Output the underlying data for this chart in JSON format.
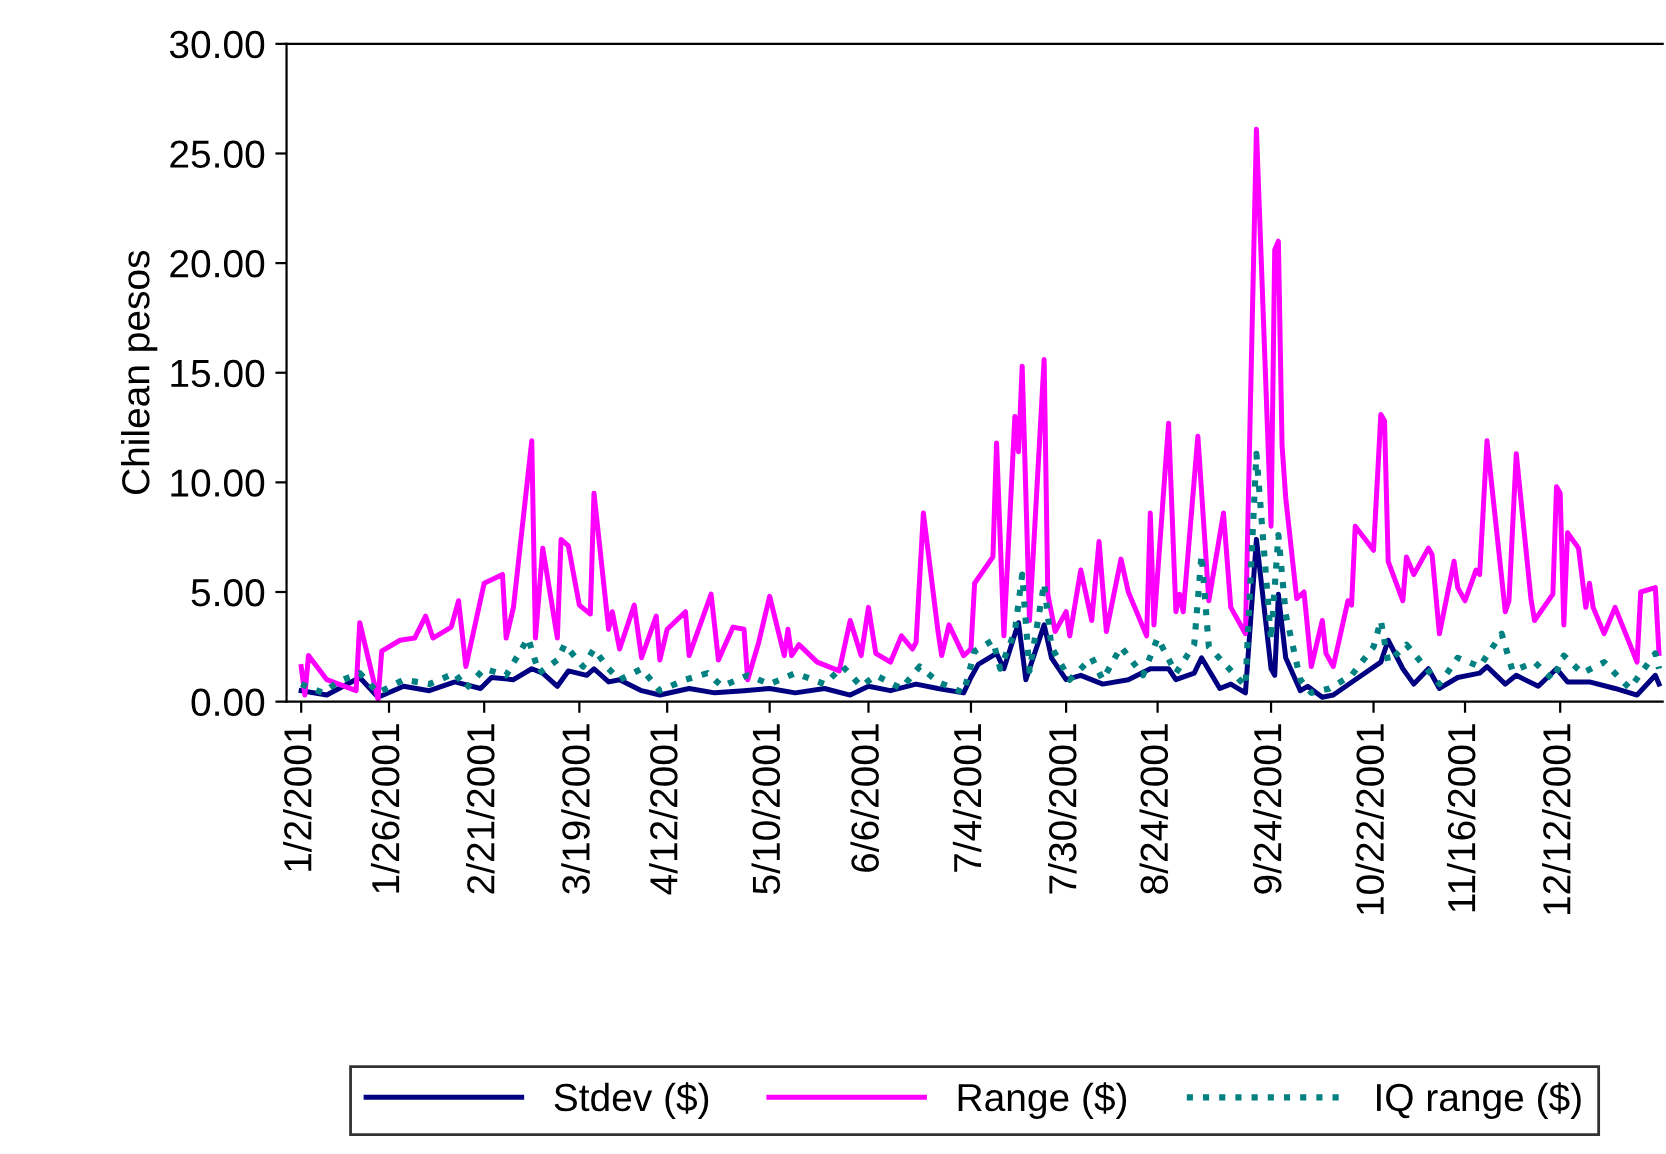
{
  "chart_data": {
    "type": "line",
    "ylabel": "Chilean pesos",
    "xlim": [
      "2000-12-29",
      "2002-01-09"
    ],
    "xticks": [
      {
        "value": "2001-01-02",
        "label": "1/2/2001"
      },
      {
        "value": "2001-01-26",
        "label": "1/26/2001"
      },
      {
        "value": "2001-02-21",
        "label": "2/21/2001"
      },
      {
        "value": "2001-03-19",
        "label": "3/19/2001"
      },
      {
        "value": "2001-04-12",
        "label": "4/12/2001"
      },
      {
        "value": "2001-05-10",
        "label": "5/10/2001"
      },
      {
        "value": "2001-06-06",
        "label": "6/6/2001"
      },
      {
        "value": "2001-07-04",
        "label": "7/4/2001"
      },
      {
        "value": "2001-07-30",
        "label": "7/30/2001"
      },
      {
        "value": "2001-08-24",
        "label": "8/24/2001"
      },
      {
        "value": "2001-09-24",
        "label": "9/24/2001"
      },
      {
        "value": "2001-10-22",
        "label": "10/22/2001"
      },
      {
        "value": "2001-11-16",
        "label": "11/16/2001"
      },
      {
        "value": "2001-12-12",
        "label": "12/12/2001"
      }
    ],
    "ylim": [
      0,
      30
    ],
    "yticks": [
      {
        "value": 0,
        "label": "0.00"
      },
      {
        "value": 5,
        "label": "5.00"
      },
      {
        "value": 10,
        "label": "10.00"
      },
      {
        "value": 15,
        "label": "15.00"
      },
      {
        "value": 20,
        "label": "20.00"
      },
      {
        "value": 25,
        "label": "25.00"
      },
      {
        "value": 30,
        "label": "30.00"
      }
    ],
    "grid": false,
    "legend": "bottom",
    "marker": "none",
    "series": [
      {
        "name": "Stdev ($)",
        "color": "#000080",
        "line_style": "solid",
        "x": [
          "2001-01-02",
          "2001-01-09",
          "2001-01-18",
          "2001-01-23",
          "2001-01-30",
          "2001-02-06",
          "2001-02-13",
          "2001-02-20",
          "2001-02-23",
          "2001-03-01",
          "2001-03-06",
          "2001-03-09",
          "2001-03-13",
          "2001-03-16",
          "2001-03-21",
          "2001-03-23",
          "2001-03-27",
          "2001-03-30",
          "2001-04-05",
          "2001-04-10",
          "2001-04-18",
          "2001-04-25",
          "2001-05-03",
          "2001-05-10",
          "2001-05-17",
          "2001-05-25",
          "2001-06-01",
          "2001-06-06",
          "2001-06-12",
          "2001-06-19",
          "2001-06-25",
          "2001-07-02",
          "2001-07-04",
          "2001-07-06",
          "2001-07-11",
          "2001-07-13",
          "2001-07-17",
          "2001-07-19",
          "2001-07-24",
          "2001-07-26",
          "2001-07-30",
          "2001-08-03",
          "2001-08-09",
          "2001-08-16",
          "2001-08-22",
          "2001-08-27",
          "2001-08-29",
          "2001-09-03",
          "2001-09-05",
          "2001-09-10",
          "2001-09-13",
          "2001-09-17",
          "2001-09-20",
          "2001-09-24",
          "2001-09-25",
          "2001-09-26",
          "2001-09-28",
          "2001-10-02",
          "2001-10-04",
          "2001-10-08",
          "2001-10-11",
          "2001-10-17",
          "2001-10-24",
          "2001-10-26",
          "2001-10-30",
          "2001-11-02",
          "2001-11-06",
          "2001-11-09",
          "2001-11-14",
          "2001-11-20",
          "2001-11-22",
          "2001-11-27",
          "2001-11-30",
          "2001-12-06",
          "2001-12-11",
          "2001-12-14",
          "2001-12-20",
          "2001-12-27",
          "2002-01-02",
          "2002-01-07",
          "2002-01-08"
        ],
        "values": [
          0.5,
          0.3,
          1.1,
          0.2,
          0.7,
          0.5,
          0.9,
          0.6,
          1.1,
          1.0,
          1.5,
          1.3,
          0.7,
          1.4,
          1.2,
          1.5,
          0.9,
          1.0,
          0.5,
          0.3,
          0.6,
          0.4,
          0.5,
          0.6,
          0.4,
          0.6,
          0.3,
          0.7,
          0.5,
          0.8,
          0.6,
          0.4,
          1.1,
          1.7,
          2.2,
          1.5,
          3.6,
          1.0,
          3.5,
          2.0,
          1.0,
          1.2,
          0.8,
          1.0,
          1.5,
          1.5,
          1.0,
          1.3,
          2.0,
          0.6,
          0.8,
          0.4,
          7.4,
          1.5,
          1.2,
          4.9,
          2.0,
          0.5,
          0.7,
          0.2,
          0.3,
          1.0,
          1.8,
          2.8,
          1.5,
          0.8,
          1.5,
          0.6,
          1.1,
          1.3,
          1.6,
          0.8,
          1.2,
          0.7,
          1.5,
          0.9,
          0.9,
          0.6,
          0.3,
          1.2,
          0.8
        ]
      },
      {
        "name": "Range ($)",
        "color": "#ff00ff",
        "line_style": "solid",
        "x": [
          "2001-01-02",
          "2001-01-03",
          "2001-01-04",
          "2001-01-09",
          "2001-01-17",
          "2001-01-18",
          "2001-01-23",
          "2001-01-24",
          "2001-01-29",
          "2001-02-02",
          "2001-02-05",
          "2001-02-07",
          "2001-02-12",
          "2001-02-14",
          "2001-02-16",
          "2001-02-21",
          "2001-02-26",
          "2001-02-27",
          "2001-03-01",
          "2001-03-06",
          "2001-03-07",
          "2001-03-09",
          "2001-03-13",
          "2001-03-14",
          "2001-03-16",
          "2001-03-19",
          "2001-03-22",
          "2001-03-23",
          "2001-03-27",
          "2001-03-28",
          "2001-03-30",
          "2001-04-03",
          "2001-04-05",
          "2001-04-09",
          "2001-04-10",
          "2001-04-12",
          "2001-04-17",
          "2001-04-18",
          "2001-04-24",
          "2001-04-26",
          "2001-04-30",
          "2001-05-03",
          "2001-05-04",
          "2001-05-07",
          "2001-05-10",
          "2001-05-14",
          "2001-05-15",
          "2001-05-16",
          "2001-05-18",
          "2001-05-23",
          "2001-05-29",
          "2001-06-01",
          "2001-06-04",
          "2001-06-06",
          "2001-06-08",
          "2001-06-12",
          "2001-06-15",
          "2001-06-18",
          "2001-06-19",
          "2001-06-21",
          "2001-06-25",
          "2001-06-26",
          "2001-06-28",
          "2001-07-02",
          "2001-07-04",
          "2001-07-05",
          "2001-07-10",
          "2001-07-11",
          "2001-07-13",
          "2001-07-16",
          "2001-07-17",
          "2001-07-18",
          "2001-07-20",
          "2001-07-24",
          "2001-07-25",
          "2001-07-27",
          "2001-07-30",
          "2001-07-31",
          "2001-08-03",
          "2001-08-06",
          "2001-08-08",
          "2001-08-09",
          "2001-08-10",
          "2001-08-14",
          "2001-08-16",
          "2001-08-21",
          "2001-08-22",
          "2001-08-23",
          "2001-08-27",
          "2001-08-29",
          "2001-08-30",
          "2001-08-31",
          "2001-09-04",
          "2001-09-07",
          "2001-09-11",
          "2001-09-13",
          "2001-09-17",
          "2001-09-20",
          "2001-09-24",
          "2001-09-25",
          "2001-09-26",
          "2001-09-27",
          "2001-09-28",
          "2001-10-01",
          "2001-10-03",
          "2001-10-05",
          "2001-10-08",
          "2001-10-09",
          "2001-10-11",
          "2001-10-15",
          "2001-10-16",
          "2001-10-17",
          "2001-10-22",
          "2001-10-24",
          "2001-10-25",
          "2001-10-26",
          "2001-10-30",
          "2001-10-31",
          "2001-11-02",
          "2001-11-06",
          "2001-11-07",
          "2001-11-09",
          "2001-11-13",
          "2001-11-14",
          "2001-11-16",
          "2001-11-19",
          "2001-11-20",
          "2001-11-22",
          "2001-11-27",
          "2001-11-28",
          "2001-11-30",
          "2001-12-04",
          "2001-12-05",
          "2001-12-10",
          "2001-12-11",
          "2001-12-12",
          "2001-12-13",
          "2001-12-14",
          "2001-12-17",
          "2001-12-19",
          "2001-12-20",
          "2001-12-21",
          "2001-12-24",
          "2001-12-27",
          "2002-01-02",
          "2002-01-03",
          "2002-01-07",
          "2002-01-08"
        ],
        "values": [
          1.6,
          0.3,
          2.1,
          1.0,
          0.5,
          3.6,
          0.1,
          2.3,
          2.8,
          2.9,
          3.9,
          2.9,
          3.4,
          4.6,
          1.6,
          5.4,
          5.8,
          2.9,
          4.3,
          11.9,
          2.9,
          7.0,
          2.9,
          7.4,
          7.1,
          4.4,
          4.0,
          9.5,
          3.3,
          4.1,
          2.4,
          4.4,
          2.0,
          3.9,
          1.9,
          3.3,
          4.1,
          2.1,
          4.9,
          1.9,
          3.4,
          3.3,
          1.0,
          2.7,
          4.8,
          2.1,
          3.3,
          2.1,
          2.6,
          1.8,
          1.4,
          3.7,
          2.1,
          4.3,
          2.2,
          1.8,
          3.0,
          2.4,
          2.7,
          8.6,
          3.2,
          2.1,
          3.5,
          2.1,
          2.4,
          5.4,
          6.6,
          11.8,
          3.0,
          13.0,
          11.4,
          15.3,
          3.7,
          15.6,
          4.9,
          3.2,
          4.1,
          3.0,
          6.0,
          3.7,
          7.3,
          5.2,
          3.2,
          6.5,
          5.0,
          3.0,
          8.6,
          3.5,
          12.7,
          4.1,
          4.9,
          4.1,
          12.1,
          4.6,
          8.6,
          4.3,
          3.1,
          26.1,
          8.0,
          20.6,
          21.0,
          11.7,
          9.3,
          4.7,
          5.0,
          1.6,
          3.7,
          2.2,
          1.6,
          4.6,
          4.4,
          8.0,
          6.9,
          13.1,
          12.8,
          6.4,
          4.6,
          6.6,
          5.8,
          7.0,
          6.7,
          3.1,
          6.4,
          5.2,
          4.6,
          6.0,
          5.8,
          11.9,
          4.1,
          4.6,
          11.3,
          4.7,
          3.7,
          4.9,
          9.8,
          9.5,
          3.5,
          7.7,
          7.0,
          4.3,
          5.4,
          4.3,
          3.1,
          4.3,
          1.8,
          5.0,
          5.2,
          2.2
        ]
      },
      {
        "name": "IQ range ($)",
        "color": "#008080",
        "line_style": "dotted",
        "x": [
          "2001-01-02",
          "2001-01-08",
          "2001-01-12",
          "2001-01-18",
          "2001-01-23",
          "2001-01-30",
          "2001-02-06",
          "2001-02-13",
          "2001-02-16",
          "2001-02-21",
          "2001-02-27",
          "2001-03-05",
          "2001-03-08",
          "2001-03-13",
          "2001-03-15",
          "2001-03-20",
          "2001-03-23",
          "2001-03-27",
          "2001-03-30",
          "2001-04-05",
          "2001-04-10",
          "2001-04-17",
          "2001-04-23",
          "2001-04-27",
          "2001-05-04",
          "2001-05-10",
          "2001-05-17",
          "2001-05-25",
          "2001-05-30",
          "2001-06-04",
          "2001-06-08",
          "2001-06-15",
          "2001-06-20",
          "2001-06-25",
          "2001-07-02",
          "2001-07-05",
          "2001-07-10",
          "2001-07-12",
          "2001-07-16",
          "2001-07-18",
          "2001-07-20",
          "2001-07-24",
          "2001-07-26",
          "2001-07-31",
          "2001-08-06",
          "2001-08-09",
          "2001-08-14",
          "2001-08-20",
          "2001-08-24",
          "2001-08-29",
          "2001-09-03",
          "2001-09-05",
          "2001-09-07",
          "2001-09-12",
          "2001-09-17",
          "2001-09-20",
          "2001-09-24",
          "2001-09-26",
          "2001-09-28",
          "2001-10-02",
          "2001-10-05",
          "2001-10-10",
          "2001-10-16",
          "2001-10-22",
          "2001-10-24",
          "2001-10-26",
          "2001-10-31",
          "2001-11-06",
          "2001-11-09",
          "2001-11-14",
          "2001-11-20",
          "2001-11-26",
          "2001-11-29",
          "2001-12-05",
          "2001-12-10",
          "2001-12-13",
          "2001-12-18",
          "2001-12-24",
          "2001-12-31",
          "2002-01-07",
          "2002-01-08"
        ],
        "values": [
          0.8,
          0.4,
          0.9,
          1.3,
          0.4,
          1.0,
          0.8,
          1.3,
          0.6,
          1.5,
          1.2,
          2.9,
          1.3,
          1.9,
          2.6,
          1.6,
          2.4,
          1.5,
          1.0,
          1.5,
          0.5,
          1.0,
          1.3,
          0.7,
          1.2,
          0.8,
          1.3,
          0.8,
          1.6,
          0.7,
          1.2,
          0.6,
          1.6,
          0.9,
          0.4,
          2.3,
          2.8,
          1.5,
          3.2,
          5.8,
          1.4,
          5.4,
          2.5,
          1.0,
          2.0,
          1.0,
          2.5,
          1.2,
          2.9,
          1.3,
          2.6,
          6.7,
          2.5,
          1.6,
          0.7,
          11.3,
          2.8,
          7.6,
          4.0,
          1.0,
          0.4,
          0.6,
          1.2,
          2.5,
          3.7,
          1.8,
          2.6,
          1.4,
          0.8,
          2.0,
          1.6,
          3.1,
          1.4,
          1.8,
          1.0,
          2.1,
          1.3,
          1.8,
          0.6,
          2.2,
          1.5
        ]
      }
    ]
  }
}
